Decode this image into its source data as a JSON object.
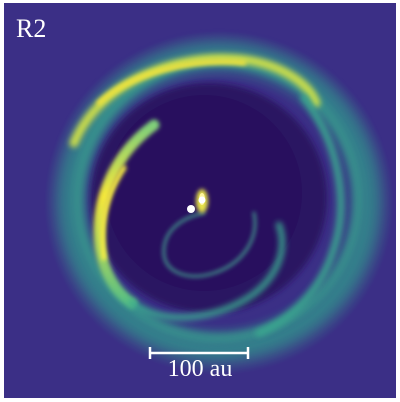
{
  "panel_label": "R2",
  "scale_bar": {
    "label": "100 au"
  },
  "colors": {
    "background": "#3b2f86",
    "cavity": "#2a1262",
    "ring": "#2f8f8c",
    "arc_bright": "#f2e53b",
    "spiral": "#4ab796",
    "star": "#ffffff"
  }
}
